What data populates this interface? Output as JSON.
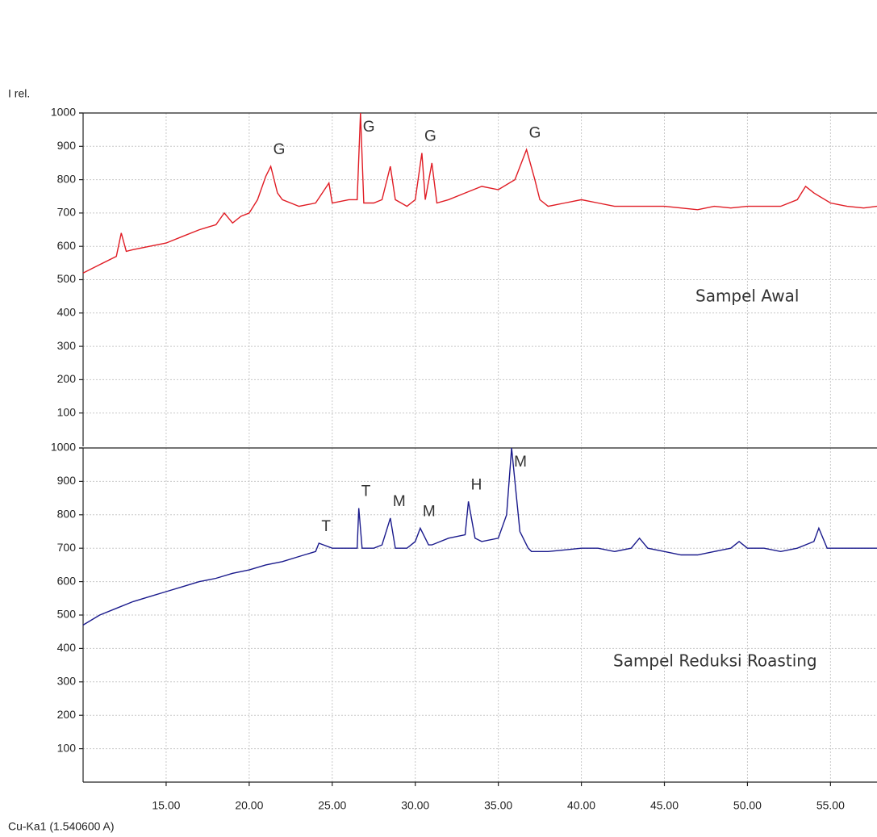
{
  "chart_data": [
    {
      "type": "line",
      "ylabel": "I rel.",
      "xlim": [
        10,
        57.8
      ],
      "ylim": [
        0,
        1000
      ],
      "yticks": [
        100,
        200,
        300,
        400,
        500,
        600,
        700,
        800,
        900,
        1000
      ],
      "grid": true,
      "x": [
        10,
        11,
        12,
        12.3,
        12.6,
        13,
        14,
        15,
        16,
        17,
        18,
        18.5,
        19,
        19.5,
        20,
        20.5,
        21,
        21.3,
        21.7,
        22,
        23,
        24,
        24.8,
        25,
        26,
        26.5,
        26.7,
        26.9,
        27.5,
        28,
        28.5,
        28.8,
        29.5,
        30,
        30.4,
        30.6,
        31,
        31.3,
        32,
        33,
        34,
        35,
        36,
        36.7,
        37.2,
        37.5,
        38,
        39,
        40,
        41,
        42,
        43,
        44,
        45,
        46,
        47,
        48,
        49,
        50,
        51,
        52,
        53,
        53.5,
        54,
        55,
        56,
        57,
        57.8
      ],
      "series": [
        {
          "name": "Sampel Awal",
          "color": "#e01c24",
          "values": [
            520,
            545,
            570,
            640,
            585,
            590,
            600,
            610,
            630,
            650,
            665,
            700,
            670,
            690,
            700,
            740,
            810,
            840,
            760,
            740,
            720,
            730,
            790,
            730,
            740,
            740,
            1000,
            730,
            730,
            740,
            840,
            740,
            720,
            740,
            880,
            740,
            850,
            730,
            740,
            760,
            780,
            770,
            800,
            890,
            800,
            740,
            720,
            730,
            740,
            730,
            720,
            720,
            720,
            720,
            715,
            710,
            720,
            715,
            720,
            720,
            720,
            740,
            780,
            760,
            730,
            720,
            715,
            720
          ]
        }
      ],
      "peaks": [
        {
          "label": "G",
          "x": 21.3
        },
        {
          "label": "G",
          "x": 26.7
        },
        {
          "label": "G",
          "x": 30.4
        },
        {
          "label": "G",
          "x": 36.7
        }
      ]
    },
    {
      "type": "line",
      "xlabel": "Cu-Ka1 (1.540600 A)",
      "xlim": [
        10,
        57.8
      ],
      "ylim": [
        0,
        1000
      ],
      "xticks": [
        {
          "value": 15,
          "label": "15.00"
        },
        {
          "value": 20,
          "label": "20.00"
        },
        {
          "value": 25,
          "label": "25.00"
        },
        {
          "value": 30,
          "label": "30.00"
        },
        {
          "value": 35,
          "label": "35.00"
        },
        {
          "value": 40,
          "label": "40.00"
        },
        {
          "value": 45,
          "label": "45.00"
        },
        {
          "value": 50,
          "label": "50.00"
        },
        {
          "value": 55,
          "label": "55.00"
        }
      ],
      "yticks": [
        100,
        200,
        300,
        400,
        500,
        600,
        700,
        800,
        900,
        1000
      ],
      "grid": true,
      "x": [
        10,
        11,
        12,
        13,
        14,
        15,
        16,
        17,
        18,
        19,
        20,
        21,
        22,
        23,
        24,
        24.2,
        25,
        26,
        26.5,
        26.6,
        26.8,
        27.5,
        28,
        28.5,
        28.8,
        29.5,
        30,
        30.3,
        30.8,
        31,
        32,
        33,
        33.2,
        33.6,
        34,
        35,
        35.5,
        35.8,
        36.3,
        36.8,
        37,
        38,
        39,
        40,
        41,
        42,
        43,
        43.5,
        44,
        45,
        46,
        47,
        48,
        49,
        49.5,
        50,
        51,
        52,
        53,
        54,
        54.3,
        54.8,
        55,
        56,
        57,
        57.8
      ],
      "series": [
        {
          "name": "Sampel Reduksi Roasting",
          "color": "#1a1a8c",
          "values": [
            470,
            500,
            520,
            540,
            555,
            570,
            585,
            600,
            610,
            625,
            635,
            650,
            660,
            675,
            690,
            715,
            700,
            700,
            700,
            820,
            700,
            700,
            710,
            790,
            700,
            700,
            720,
            760,
            710,
            710,
            730,
            740,
            840,
            730,
            720,
            730,
            800,
            1000,
            750,
            700,
            690,
            690,
            695,
            700,
            700,
            690,
            700,
            730,
            700,
            690,
            680,
            680,
            690,
            700,
            720,
            700,
            700,
            690,
            700,
            720,
            760,
            700,
            700,
            700,
            700,
            700
          ]
        }
      ],
      "peaks": [
        {
          "label": "T",
          "x": 24.2
        },
        {
          "label": "T",
          "x": 26.6
        },
        {
          "label": "M",
          "x": 28.5
        },
        {
          "label": "M",
          "x": 30.3
        },
        {
          "label": "H",
          "x": 33.2
        },
        {
          "label": "M",
          "x": 35.8
        }
      ]
    }
  ]
}
